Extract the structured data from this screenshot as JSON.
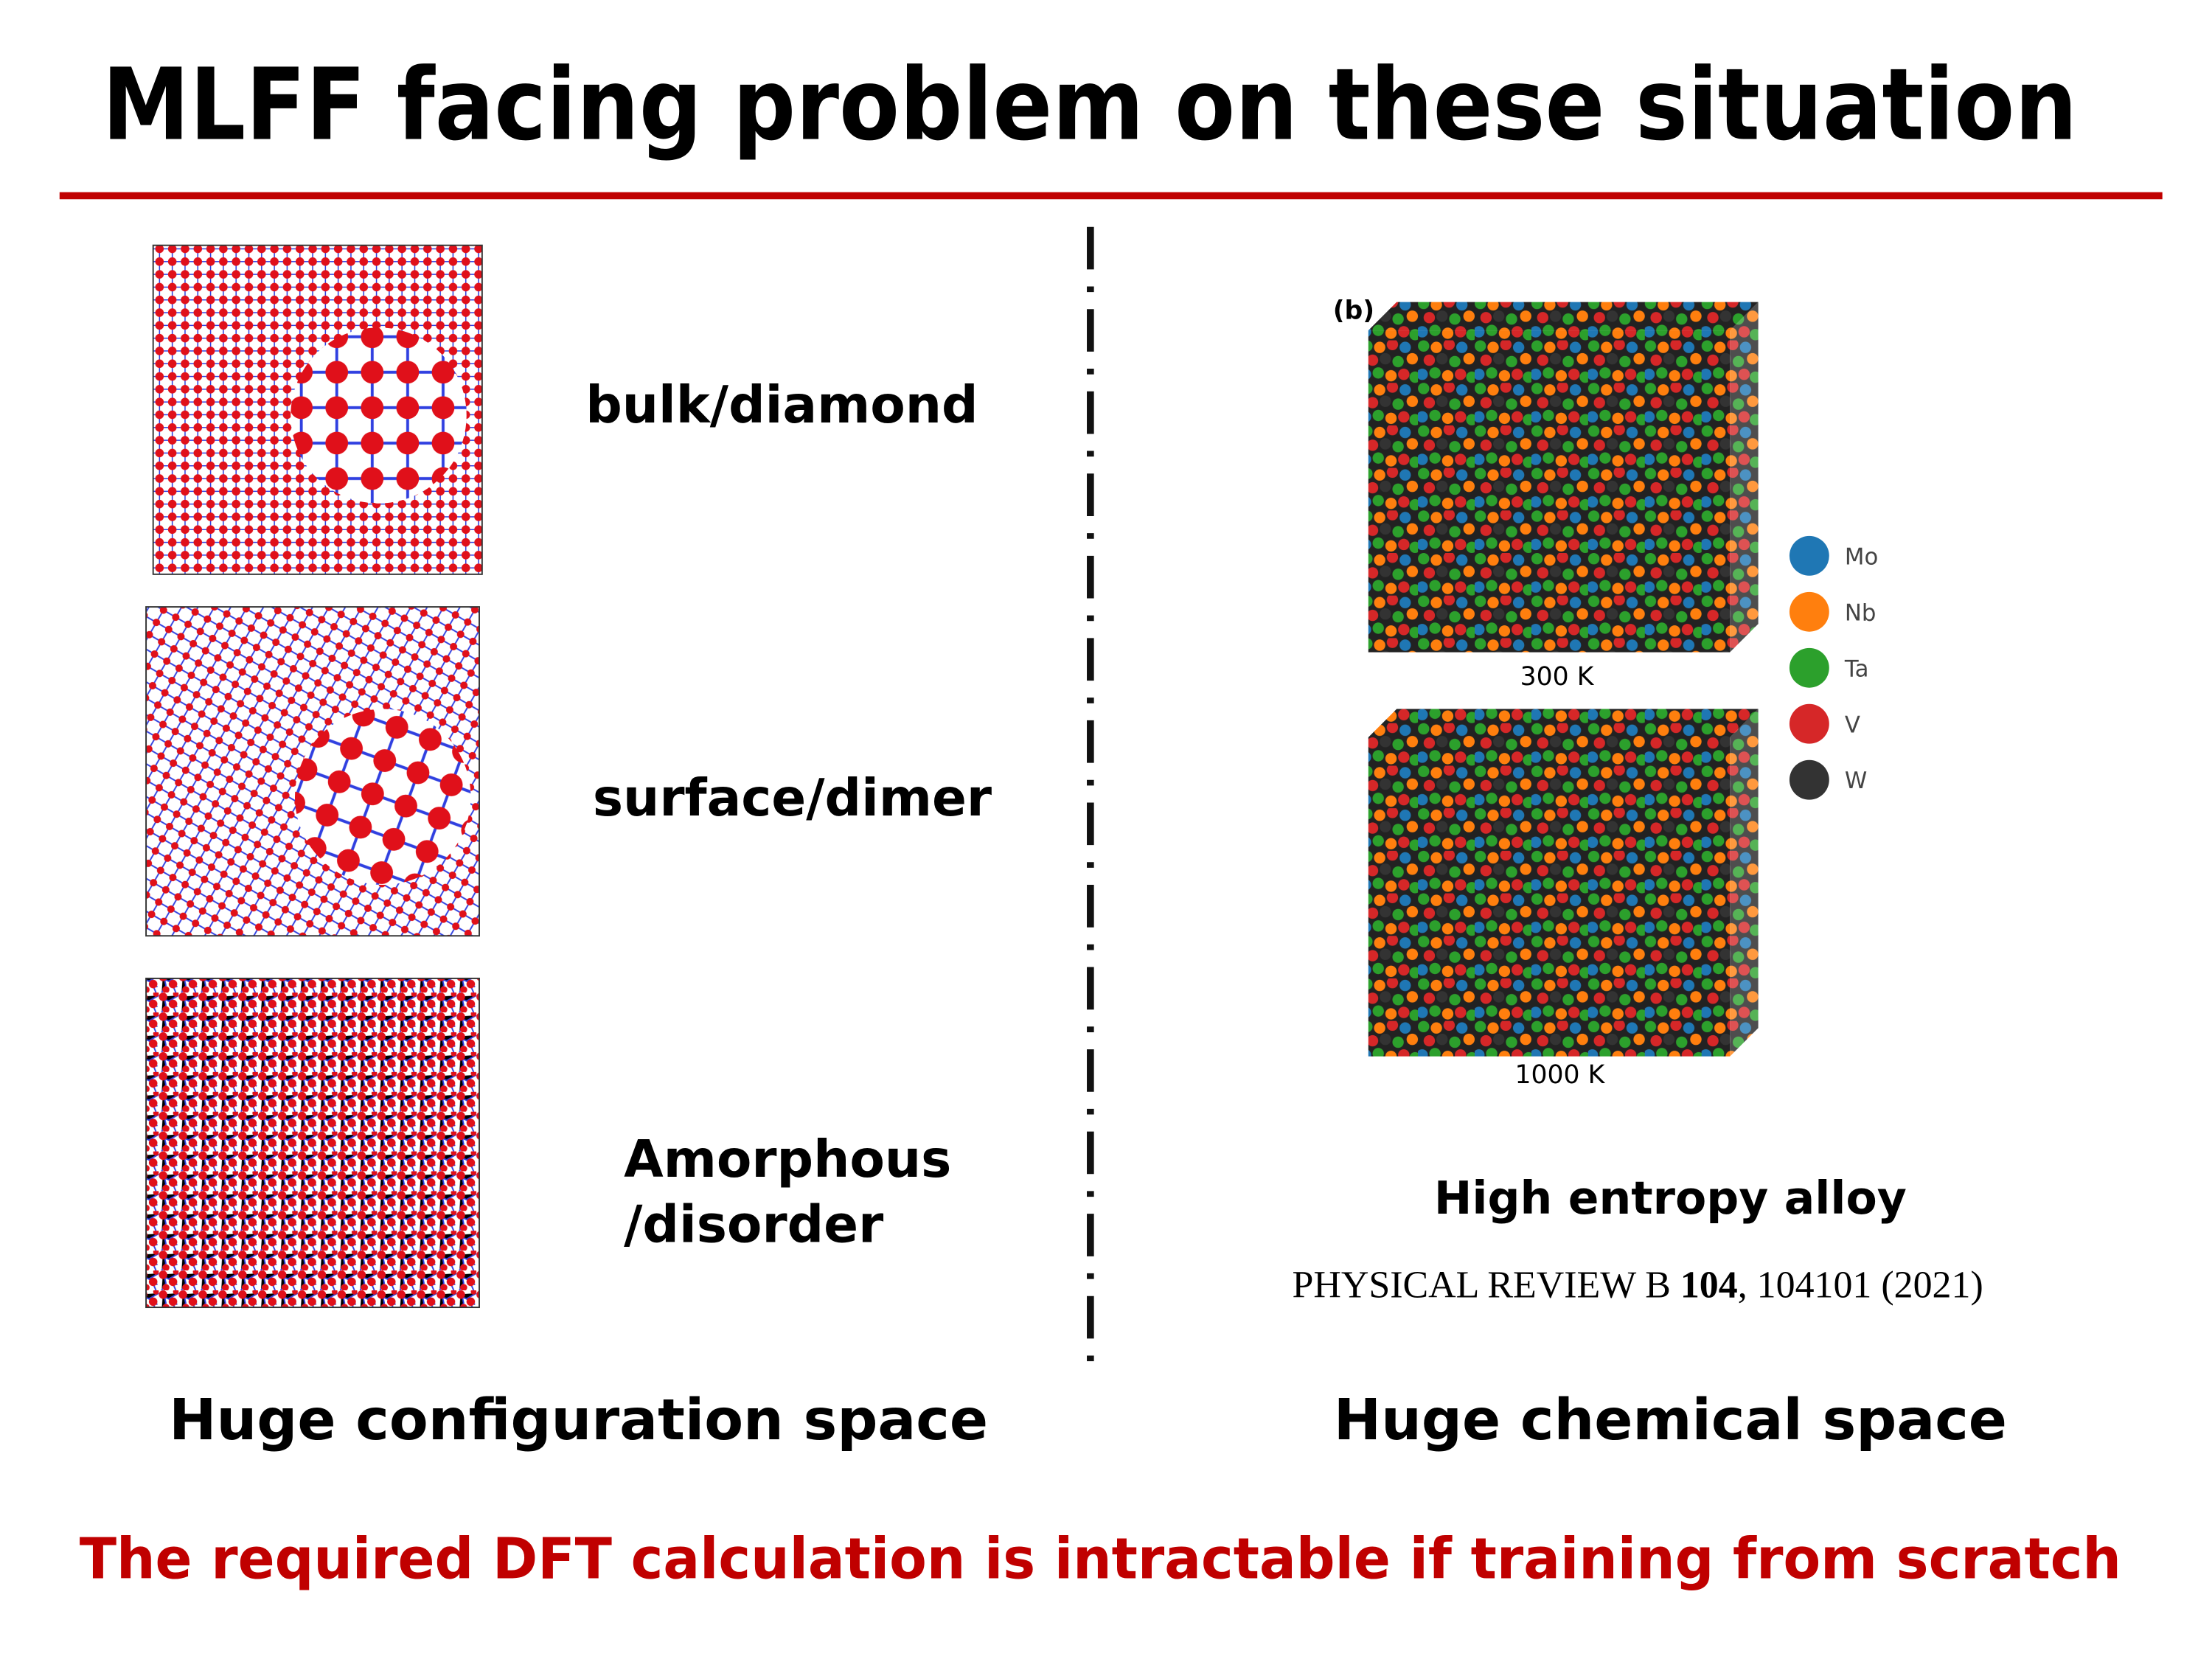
{
  "header": {
    "title": "MLFF facing problem on these situation"
  },
  "left": {
    "panels": [
      {
        "label": "bulk/diamond"
      },
      {
        "label": "surface/dimer"
      },
      {
        "label_lines": [
          "Amorphous",
          "/disorder"
        ]
      }
    ],
    "caption": "Huge configuration space"
  },
  "right": {
    "figure_tag": "(b)",
    "temperatures": [
      "300 K",
      "1000 K"
    ],
    "legend": [
      {
        "name": "Mo",
        "color": "#1f77b4"
      },
      {
        "name": "Nb",
        "color": "#ff7f0e"
      },
      {
        "name": "Ta",
        "color": "#2ca02c"
      },
      {
        "name": "V",
        "color": "#d62728"
      },
      {
        "name": "W",
        "color": "#333333"
      }
    ],
    "subtitle": "High entropy alloy",
    "citation": {
      "journal": "PHYSICAL REVIEW B ",
      "volume": "104",
      "rest": ", 104101 (2021)"
    },
    "caption": "Huge chemical space"
  },
  "footer": {
    "conclusion": "The required DFT calculation is intractable if training from scratch"
  }
}
